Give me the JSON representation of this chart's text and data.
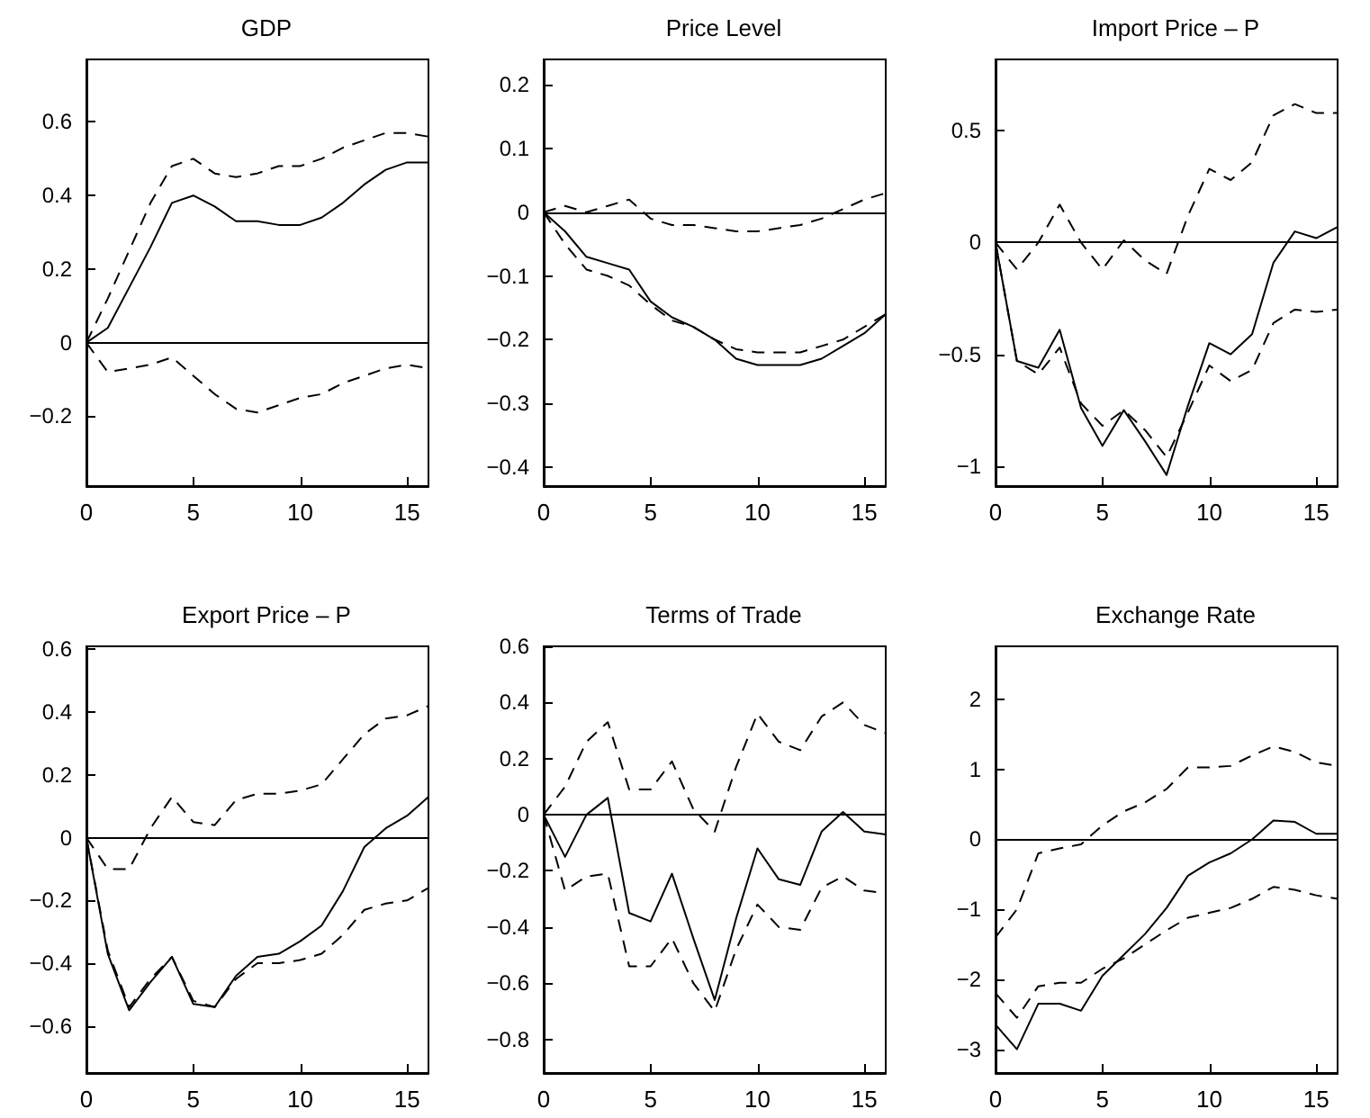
{
  "chart_data": [
    {
      "type": "line",
      "title": "GDP",
      "x": [
        0,
        1,
        2,
        3,
        4,
        5,
        6,
        7,
        8,
        9,
        10,
        11,
        12,
        13,
        14,
        15,
        16
      ],
      "xlim": [
        0,
        16
      ],
      "xticks": [
        0,
        5,
        10,
        15
      ],
      "ylim": [
        -0.39,
        0.77
      ],
      "yticks": [
        -0.2,
        0,
        0.2,
        0.4,
        0.6
      ],
      "ref_lines": [
        {
          "axis": "y",
          "value": 0
        }
      ],
      "series": [
        {
          "color": "#000000",
          "line_style": "solid",
          "values": [
            0,
            0.04,
            0.15,
            0.26,
            0.38,
            0.4,
            0.37,
            0.33,
            0.33,
            0.32,
            0.32,
            0.34,
            0.38,
            0.43,
            0.47,
            0.49,
            0.49
          ]
        },
        {
          "color": "#000000",
          "line_style": "dashed",
          "values": [
            0,
            0.12,
            0.25,
            0.38,
            0.48,
            0.5,
            0.46,
            0.45,
            0.46,
            0.48,
            0.48,
            0.5,
            0.53,
            0.55,
            0.57,
            0.57,
            0.56
          ]
        },
        {
          "color": "#000000",
          "line_style": "dashed",
          "values": [
            0,
            -0.08,
            -0.07,
            -0.06,
            -0.04,
            -0.09,
            -0.14,
            -0.18,
            -0.19,
            -0.17,
            -0.15,
            -0.14,
            -0.11,
            -0.09,
            -0.07,
            -0.06,
            -0.07
          ]
        }
      ]
    },
    {
      "type": "line",
      "title": "Price Level",
      "x": [
        0,
        1,
        2,
        3,
        4,
        5,
        6,
        7,
        8,
        9,
        10,
        11,
        12,
        13,
        14,
        15,
        16
      ],
      "xlim": [
        0,
        16
      ],
      "xticks": [
        0,
        5,
        10,
        15
      ],
      "ylim": [
        -0.43,
        0.24
      ],
      "yticks": [
        -0.4,
        -0.3,
        -0.2,
        -0.1,
        0,
        0.1,
        0.2
      ],
      "ref_lines": [
        {
          "axis": "y",
          "value": 0
        }
      ],
      "series": [
        {
          "color": "#000000",
          "line_style": "solid",
          "values": [
            0,
            -0.03,
            -0.07,
            -0.08,
            -0.09,
            -0.14,
            -0.165,
            -0.18,
            -0.2,
            -0.23,
            -0.24,
            -0.24,
            -0.24,
            -0.23,
            -0.21,
            -0.19,
            -0.16
          ]
        },
        {
          "color": "#000000",
          "line_style": "dashed",
          "values": [
            0,
            0.01,
            0,
            0.01,
            0.02,
            -0.01,
            -0.02,
            -0.02,
            -0.025,
            -0.03,
            -0.03,
            -0.025,
            -0.02,
            -0.01,
            0.005,
            0.02,
            0.03
          ]
        },
        {
          "color": "#000000",
          "line_style": "dashed",
          "values": [
            0,
            -0.05,
            -0.09,
            -0.1,
            -0.115,
            -0.145,
            -0.17,
            -0.18,
            -0.2,
            -0.215,
            -0.22,
            -0.22,
            -0.22,
            -0.21,
            -0.2,
            -0.18,
            -0.16
          ]
        }
      ]
    },
    {
      "type": "line",
      "title": "Import Price – P",
      "x": [
        0,
        1,
        2,
        3,
        4,
        5,
        6,
        7,
        8,
        9,
        10,
        11,
        12,
        13,
        14,
        15,
        16
      ],
      "xlim": [
        0,
        16
      ],
      "xticks": [
        0,
        5,
        10,
        15
      ],
      "ylim": [
        -1.09,
        0.82
      ],
      "yticks": [
        -1,
        -0.5,
        0,
        0.5
      ],
      "ref_lines": [
        {
          "axis": "y",
          "value": 0
        }
      ],
      "series": [
        {
          "color": "#000000",
          "line_style": "solid",
          "values": [
            0,
            -0.53,
            -0.56,
            -0.39,
            -0.74,
            -0.91,
            -0.75,
            -0.89,
            -1.04,
            -0.73,
            -0.45,
            -0.5,
            -0.41,
            -0.09,
            0.05,
            0.02,
            0.07
          ]
        },
        {
          "color": "#000000",
          "line_style": "dashed",
          "values": [
            0,
            -0.12,
            0,
            0.17,
            0,
            -0.12,
            0.01,
            -0.08,
            -0.14,
            0.12,
            0.33,
            0.28,
            0.36,
            0.57,
            0.62,
            0.58,
            0.58
          ]
        },
        {
          "color": "#000000",
          "line_style": "dashed",
          "values": [
            0,
            -0.53,
            -0.59,
            -0.47,
            -0.72,
            -0.82,
            -0.75,
            -0.84,
            -0.96,
            -0.76,
            -0.55,
            -0.62,
            -0.57,
            -0.36,
            -0.3,
            -0.31,
            -0.3
          ]
        }
      ]
    },
    {
      "type": "line",
      "title": "Export Price – P",
      "x": [
        0,
        1,
        2,
        3,
        4,
        5,
        6,
        7,
        8,
        9,
        10,
        11,
        12,
        13,
        14,
        15,
        16
      ],
      "xlim": [
        0,
        16
      ],
      "xticks": [
        0,
        5,
        10,
        15
      ],
      "ylim": [
        -0.75,
        0.61
      ],
      "yticks": [
        -0.6,
        -0.4,
        -0.2,
        0,
        0.2,
        0.4,
        0.6
      ],
      "ref_lines": [
        {
          "axis": "y",
          "value": 0
        }
      ],
      "series": [
        {
          "color": "#000000",
          "line_style": "solid",
          "values": [
            0,
            -0.37,
            -0.55,
            -0.46,
            -0.38,
            -0.53,
            -0.54,
            -0.44,
            -0.38,
            -0.37,
            -0.33,
            -0.28,
            -0.17,
            -0.03,
            0.03,
            0.07,
            0.13
          ]
        },
        {
          "color": "#000000",
          "line_style": "dashed",
          "values": [
            0,
            -0.1,
            -0.1,
            0.03,
            0.13,
            0.05,
            0.04,
            0.12,
            0.14,
            0.14,
            0.15,
            0.17,
            0.25,
            0.33,
            0.38,
            0.39,
            0.42
          ]
        },
        {
          "color": "#000000",
          "line_style": "dashed",
          "values": [
            0,
            -0.36,
            -0.54,
            -0.45,
            -0.38,
            -0.52,
            -0.54,
            -0.45,
            -0.4,
            -0.4,
            -0.39,
            -0.37,
            -0.31,
            -0.23,
            -0.21,
            -0.2,
            -0.16
          ]
        }
      ]
    },
    {
      "type": "line",
      "title": "Terms of Trade",
      "x": [
        0,
        1,
        2,
        3,
        4,
        5,
        6,
        7,
        8,
        9,
        10,
        11,
        12,
        13,
        14,
        15,
        16
      ],
      "xlim": [
        0,
        16
      ],
      "xticks": [
        0,
        5,
        10,
        15
      ],
      "ylim": [
        -0.92,
        0.6
      ],
      "yticks": [
        -0.8,
        -0.6,
        -0.4,
        -0.2,
        0,
        0.2,
        0.4,
        0.6
      ],
      "ref_lines": [
        {
          "axis": "y",
          "value": 0
        }
      ],
      "series": [
        {
          "color": "#000000",
          "line_style": "solid",
          "values": [
            0,
            -0.15,
            0,
            0.06,
            -0.35,
            -0.38,
            -0.21,
            -0.44,
            -0.66,
            -0.37,
            -0.12,
            -0.23,
            -0.25,
            -0.06,
            0.01,
            -0.06,
            -0.07
          ]
        },
        {
          "color": "#000000",
          "line_style": "dashed",
          "values": [
            0,
            0.1,
            0.26,
            0.33,
            0.09,
            0.09,
            0.19,
            0.02,
            -0.06,
            0.17,
            0.36,
            0.26,
            0.23,
            0.35,
            0.4,
            0.32,
            0.29
          ]
        },
        {
          "color": "#000000",
          "line_style": "dashed",
          "values": [
            0,
            -0.27,
            -0.22,
            -0.21,
            -0.54,
            -0.54,
            -0.44,
            -0.6,
            -0.7,
            -0.48,
            -0.32,
            -0.4,
            -0.41,
            -0.26,
            -0.22,
            -0.27,
            -0.28
          ]
        }
      ]
    },
    {
      "type": "line",
      "title": "Exchange Rate",
      "x": [
        0,
        1,
        2,
        3,
        4,
        5,
        6,
        7,
        8,
        9,
        10,
        11,
        12,
        13,
        14,
        15,
        16
      ],
      "xlim": [
        0,
        16
      ],
      "xticks": [
        0,
        5,
        10,
        15
      ],
      "ylim": [
        -3.34,
        2.76
      ],
      "yticks": [
        -3,
        -2,
        -1,
        0,
        1,
        2
      ],
      "ref_lines": [
        {
          "axis": "y",
          "value": 0
        }
      ],
      "series": [
        {
          "color": "#000000",
          "line_style": "solid",
          "values": [
            -2.65,
            -3,
            -2.35,
            -2.35,
            -2.45,
            -1.95,
            -1.65,
            -1.35,
            -0.98,
            -0.52,
            -0.33,
            -0.2,
            0,
            0.27,
            0.25,
            0.08,
            0.08
          ]
        },
        {
          "color": "#000000",
          "line_style": "dashed",
          "values": [
            -1.4,
            -1,
            -0.2,
            -0.13,
            -0.07,
            0.2,
            0.4,
            0.53,
            0.72,
            1.03,
            1.03,
            1.05,
            1.2,
            1.33,
            1.25,
            1.1,
            1.05
          ]
        },
        {
          "color": "#000000",
          "line_style": "dashed",
          "values": [
            -2.2,
            -2.55,
            -2.1,
            -2.05,
            -2.05,
            -1.85,
            -1.7,
            -1.5,
            -1.3,
            -1.12,
            -1.05,
            -0.98,
            -0.85,
            -0.68,
            -0.72,
            -0.8,
            -0.85
          ]
        }
      ]
    }
  ]
}
